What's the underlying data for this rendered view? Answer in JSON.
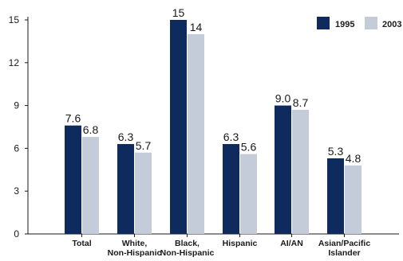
{
  "chart_data": {
    "type": "bar",
    "categories": [
      [
        "Total"
      ],
      [
        "White,",
        "Non-Hispanic"
      ],
      [
        "Black,",
        "Non-Hispanic"
      ],
      [
        "Hispanic"
      ],
      [
        "AI/AN"
      ],
      [
        "Asian/Pacific",
        "Islander"
      ]
    ],
    "series": [
      {
        "name": "1995",
        "color": "#0f2a5c",
        "values": [
          7.6,
          6.3,
          15,
          6.3,
          9.0,
          5.3
        ],
        "labels": [
          "7.6",
          "6.3",
          "15",
          "6.3",
          "9.0",
          "5.3"
        ]
      },
      {
        "name": "2003",
        "color": "#c3ccd8",
        "values": [
          6.8,
          5.7,
          14,
          5.6,
          8.7,
          4.8
        ],
        "labels": [
          "6.8",
          "5.7",
          "14",
          "5.6",
          "8.7",
          "4.8"
        ]
      }
    ],
    "ylim": [
      0,
      15
    ],
    "yticks": [
      "0",
      "3",
      "6",
      "9",
      "12",
      "15"
    ],
    "grid": false,
    "legend_position": "top-right",
    "title": "",
    "xlabel": "",
    "ylabel": ""
  }
}
